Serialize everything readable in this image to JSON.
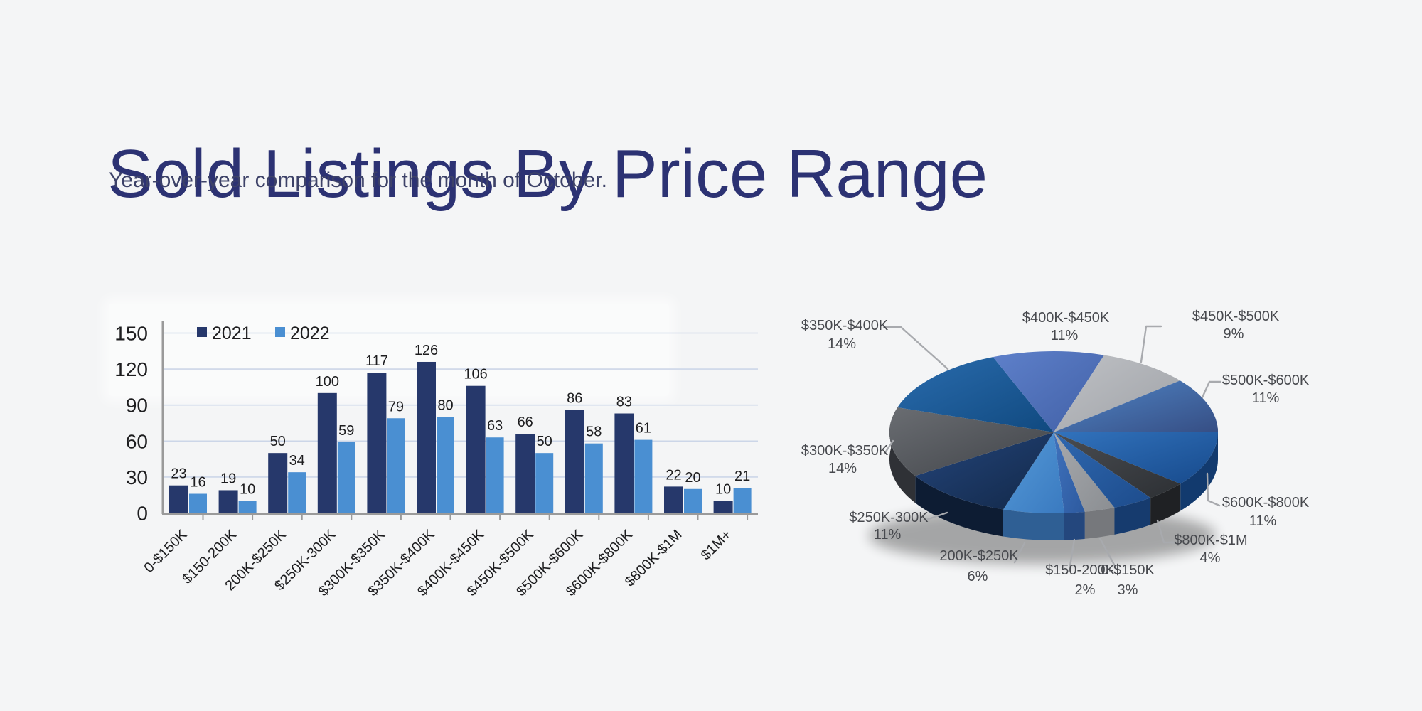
{
  "page": {
    "background": "#f4f5f6"
  },
  "header": {
    "title": "Sold Listings By Price Range",
    "subtitle": "Year-over-year comparison for the month of October.",
    "title_color": "#2c3273",
    "subtitle_color": "#3d4268"
  },
  "chart_data": [
    {
      "id": "bar-chart",
      "type": "bar",
      "categories": [
        "0-$150K",
        "$150-200K",
        "200K-$250K",
        "$250K-300K",
        "$300K-$350K",
        "$350K-$400K",
        "$400K-$450K",
        "$450K-$500K",
        "$500K-$600K",
        "$600K-$800K",
        "$800K-$1M",
        "$1M+"
      ],
      "series": [
        {
          "name": "2021",
          "color": "#26386b",
          "values": [
            23,
            19,
            50,
            100,
            117,
            126,
            106,
            66,
            86,
            83,
            22,
            10
          ]
        },
        {
          "name": "2022",
          "color": "#4a8fd2",
          "values": [
            16,
            10,
            34,
            59,
            79,
            80,
            63,
            50,
            58,
            61,
            20,
            21
          ]
        }
      ],
      "ylim": [
        0,
        150
      ],
      "yticks": [
        0,
        30,
        60,
        90,
        120,
        150
      ],
      "grid": true,
      "legend_position": "top-left",
      "gridline_color": "#ccd6e8",
      "axis_color": "#9a9a9a",
      "text_color": "#1d1d1f"
    },
    {
      "id": "pie-chart",
      "type": "pie",
      "unit": "%",
      "labels": [
        "0-$150K",
        "$150-200K",
        "200K-$250K",
        "$250K-300K",
        "$300K-$350K",
        "$350K-$400K",
        "$400K-$450K",
        "$450K-$500K",
        "$500K-$600K",
        "$600K-$800K",
        "$800K-$1M",
        "$1M+"
      ],
      "values": [
        3,
        2,
        6,
        11,
        14,
        14,
        11,
        9,
        11,
        11,
        4,
        4
      ],
      "pct_labels": [
        "3%",
        "2%",
        "6%",
        "11%",
        "14%",
        "14%",
        "11%",
        "9%",
        "11%",
        "11%",
        "4%",
        ""
      ],
      "label_visible": [
        true,
        true,
        true,
        true,
        true,
        true,
        true,
        true,
        true,
        true,
        true,
        false
      ],
      "start_angle_deg": 158.3,
      "clockwise": true,
      "slice_colors_light": [
        "#a6a9ad",
        "#4072bd",
        "#559ad8",
        "#24457b",
        "#6a6d72",
        "#2a6cae",
        "#5e80ca",
        "#bfc1c5",
        "#5086c7",
        "#3273bd",
        "#4a4d52",
        "#2f68b0"
      ],
      "slice_colors_dark": [
        "#8b8e92",
        "#2d5a9f",
        "#3a7ac0",
        "#122848",
        "#404348",
        "#10497f",
        "#4160a6",
        "#9fa2a7",
        "#364e84",
        "#174a8c",
        "#2d3034",
        "#1d4c8c"
      ],
      "slice_colors_wall": [
        "#76787c",
        "#24477d",
        "#2f5f94",
        "#0d1c33",
        "#2f3136",
        "#0b3a65",
        "#334b83",
        "#85888d",
        "#2a3c68",
        "#123a6e",
        "#1f2124",
        "#163b6e"
      ],
      "label_color": "#47494e",
      "leader_color": "#a8aaae"
    }
  ]
}
